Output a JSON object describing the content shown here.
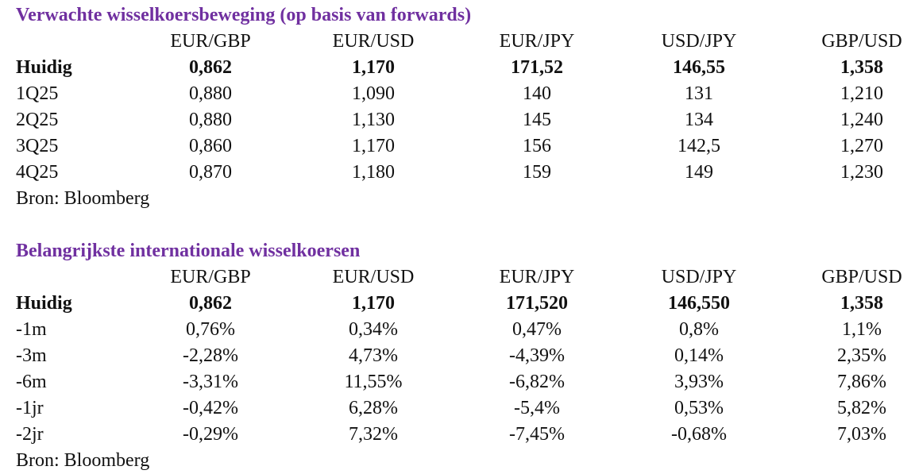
{
  "tables": [
    {
      "title": "Verwachte wisselkoersbeweging (op basis van forwards)",
      "columns": [
        "EUR/GBP",
        "EUR/USD",
        "EUR/JPY",
        "USD/JPY",
        "GBP/USD"
      ],
      "rows": [
        {
          "label": "Huidig",
          "values": [
            "0,862",
            "1,170",
            "171,52",
            "146,55",
            "1,358"
          ]
        },
        {
          "label": "1Q25",
          "values": [
            "0,880",
            "1,090",
            "140",
            "131",
            "1,210"
          ]
        },
        {
          "label": "2Q25",
          "values": [
            "0,880",
            "1,130",
            "145",
            "134",
            "1,240"
          ]
        },
        {
          "label": "3Q25",
          "values": [
            "0,860",
            "1,170",
            "156",
            "142,5",
            "1,270"
          ]
        },
        {
          "label": "4Q25",
          "values": [
            "0,870",
            "1,180",
            "159",
            "149",
            "1,230"
          ]
        }
      ],
      "source": "Bron: Bloomberg"
    },
    {
      "title": "Belangrijkste internationale wisselkoersen",
      "columns": [
        "EUR/GBP",
        "EUR/USD",
        "EUR/JPY",
        "USD/JPY",
        "GBP/USD"
      ],
      "rows": [
        {
          "label": "Huidig",
          "values": [
            "0,862",
            "1,170",
            "171,520",
            "146,550",
            "1,358"
          ]
        },
        {
          "label": "-1m",
          "values": [
            "0,76%",
            "0,34%",
            "0,47%",
            "0,8%",
            "1,1%"
          ]
        },
        {
          "label": "-3m",
          "values": [
            "-2,28%",
            "4,73%",
            "-4,39%",
            "0,14%",
            "2,35%"
          ]
        },
        {
          "label": "-6m",
          "values": [
            "-3,31%",
            "11,55%",
            "-6,82%",
            "3,93%",
            "7,86%"
          ]
        },
        {
          "label": "-1jr",
          "values": [
            "-0,42%",
            "6,28%",
            "-5,4%",
            "0,53%",
            "5,82%"
          ]
        },
        {
          "label": "-2jr",
          "values": [
            "-0,29%",
            "7,32%",
            "-7,45%",
            "-0,68%",
            "7,03%"
          ]
        }
      ],
      "source": "Bron: Bloomberg"
    }
  ]
}
